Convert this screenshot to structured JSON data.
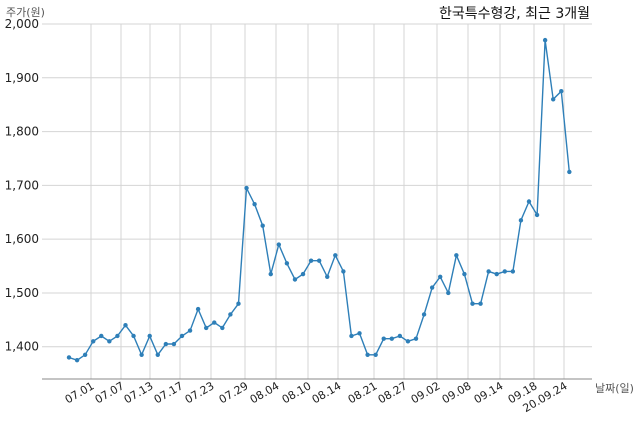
{
  "chart_data": {
    "type": "line",
    "title": "한국특수형강, 최근 3개월",
    "xlabel": "날짜(일)",
    "ylabel": "주가(원)",
    "ylim": [
      1340,
      2000
    ],
    "yticks": [
      1400,
      1500,
      1600,
      1700,
      1800,
      1900,
      2000
    ],
    "ytick_labels": [
      "1,400",
      "1,500",
      "1,600",
      "1,700",
      "1,800",
      "1,900",
      "2,000"
    ],
    "xtick_labels": [
      "07.01",
      "07.07",
      "07.13",
      "07.17",
      "07.23",
      "07.29",
      "08.04",
      "08.10",
      "08.14",
      "08.21",
      "08.27",
      "09.02",
      "09.08",
      "09.14",
      "09.18",
      "20.09.24"
    ],
    "grid": true,
    "line_color": "#2e7fb8",
    "series": [
      {
        "values": [
          1380,
          1375,
          1385,
          1410,
          1420,
          1410,
          1420,
          1440,
          1420,
          1385,
          1420,
          1385,
          1405,
          1405,
          1420,
          1430,
          1470,
          1435,
          1445,
          1435,
          1460,
          1480,
          1695,
          1665,
          1625,
          1535,
          1590,
          1555,
          1525,
          1535,
          1560,
          1560,
          1530,
          1570,
          1540,
          1420,
          1425,
          1385,
          1385,
          1415,
          1415,
          1420,
          1410,
          1415,
          1460,
          1510,
          1530,
          1500,
          1570,
          1535,
          1480,
          1480,
          1540,
          1535,
          1540,
          1540,
          1635,
          1670,
          1645,
          1970,
          1860,
          1875,
          1725
        ]
      }
    ]
  }
}
